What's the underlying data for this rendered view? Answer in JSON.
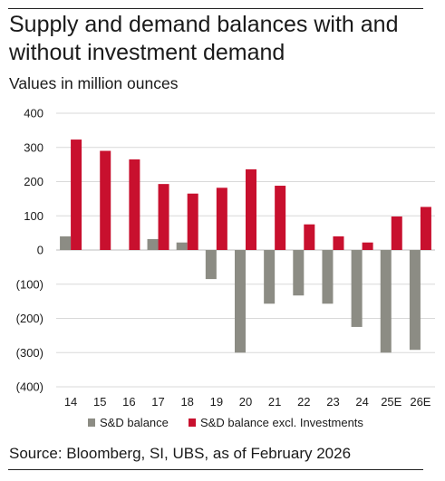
{
  "title": "Supply and demand balances with and without investment demand",
  "subtitle": "Values in million ounces",
  "source": "Source: Bloomberg, SI, UBS, as of February 2026",
  "colors": {
    "sd_balance": "#8c8c84",
    "sd_excl_investments": "#c8102e",
    "grid": "#d9d9d9"
  },
  "chart_data": {
    "type": "bar",
    "categories": [
      "14",
      "15",
      "16",
      "17",
      "18",
      "19",
      "20",
      "21",
      "22",
      "23",
      "24",
      "25E",
      "26E"
    ],
    "series": [
      {
        "name": "S&D balance",
        "values": [
          40,
          0,
          0,
          32,
          22,
          -85,
          -300,
          -157,
          -133,
          -157,
          -225,
          -300,
          -292
        ]
      },
      {
        "name": "S&D balance excl. Investments",
        "values": [
          323,
          290,
          265,
          193,
          165,
          182,
          236,
          188,
          75,
          40,
          22,
          98,
          126
        ]
      }
    ],
    "yticks": [
      "400",
      "300",
      "200",
      "100",
      "0",
      "(100)",
      "(200)",
      "(300)",
      "(400)"
    ],
    "ylim": [
      -400,
      400
    ],
    "grid": true,
    "legend": "bottom"
  }
}
